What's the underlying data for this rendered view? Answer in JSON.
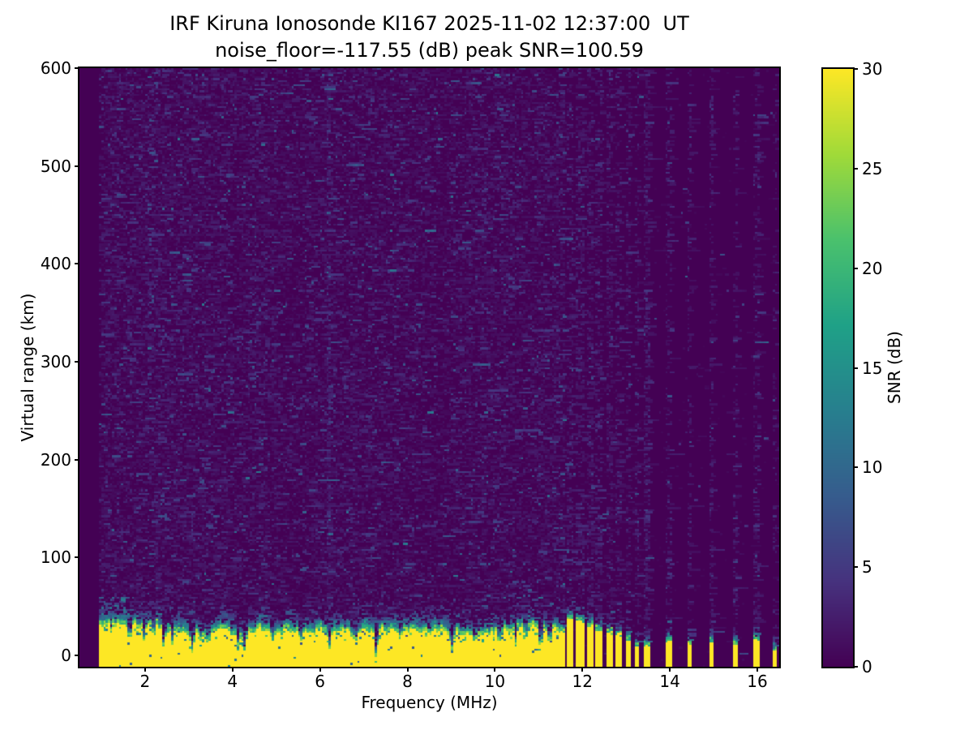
{
  "chart_data": {
    "type": "heatmap",
    "title": "IRF Kiruna Ionosonde KI167 2025-11-02 12:37:00  UT",
    "subtitle": "noise_floor=-117.55 (dB) peak SNR=100.59",
    "station": "IRF Kiruna Ionosonde KI167",
    "timestamp_ut": "2025-11-02 12:37:00",
    "noise_floor_db": -117.55,
    "peak_snr_db": 100.59,
    "xlabel": "Frequency (MHz)",
    "ylabel": "Virtual range (km)",
    "xlim": [
      0.5,
      16.5
    ],
    "ylim": [
      -11.6,
      600
    ],
    "xticks": [
      2,
      4,
      6,
      8,
      10,
      12,
      14,
      16
    ],
    "yticks": [
      0,
      100,
      200,
      300,
      400,
      500,
      600
    ],
    "colorbar": {
      "label": "SNR (dB)",
      "ticks": [
        0,
        5,
        10,
        15,
        20,
        25,
        30
      ],
      "min": 0,
      "max": 30,
      "colormap": "viridis"
    },
    "colors": {
      "background": "#440154",
      "peak": "#fde725"
    },
    "features": {
      "signal_start_mhz": 0.95,
      "solid_ground_band_end_mhz": 11.61,
      "ground_band_top_km": 30,
      "band_notches_mhz": [
        [
          1.65,
          14,
          0.05
        ],
        [
          2.2,
          9,
          0.04
        ],
        [
          2.62,
          13,
          0.04
        ],
        [
          3.08,
          19,
          0.05
        ],
        [
          3.45,
          10,
          0.04
        ],
        [
          4.28,
          19,
          0.05
        ],
        [
          4.9,
          9,
          0.04
        ],
        [
          5.55,
          11,
          0.04
        ],
        [
          6.22,
          19,
          0.05
        ],
        [
          6.8,
          9,
          0.04
        ],
        [
          7.3,
          16,
          0.05
        ],
        [
          7.85,
          9,
          0.04
        ],
        [
          8.5,
          10,
          0.04
        ],
        [
          9.0,
          15,
          0.05
        ],
        [
          9.55,
          9,
          0.04
        ],
        [
          10.1,
          11,
          0.04
        ],
        [
          10.7,
          10,
          0.04
        ],
        [
          11.25,
          12,
          0.04
        ]
      ],
      "stripes": [
        {
          "f": 11.73,
          "w": 0.08,
          "top": 42,
          "dot": 0.45
        },
        {
          "f": 11.95,
          "w": 0.08,
          "top": 38,
          "dot": 0.45
        },
        {
          "f": 12.17,
          "w": 0.075,
          "top": 34,
          "dot": 0.4
        },
        {
          "f": 12.39,
          "w": 0.07,
          "top": 30,
          "dot": 0.4
        },
        {
          "f": 12.61,
          "w": 0.07,
          "top": 27,
          "dot": 0.38
        },
        {
          "f": 12.83,
          "w": 0.065,
          "top": 25,
          "dot": 0.36
        },
        {
          "f": 13.05,
          "w": 0.06,
          "top": 21,
          "dot": 0.34
        },
        {
          "f": 13.27,
          "w": 0.05,
          "top": 13,
          "dot": 0.3
        },
        {
          "f": 13.47,
          "w": 0.06,
          "top": 14,
          "dot": 0.55
        },
        {
          "f": 13.97,
          "w": 0.06,
          "top": 18,
          "dot": 0.32
        },
        {
          "f": 14.46,
          "w": 0.06,
          "top": 15,
          "dot": 0.3
        },
        {
          "f": 14.95,
          "w": 0.06,
          "top": 18,
          "dot": 0.35
        },
        {
          "f": 15.49,
          "w": 0.06,
          "top": 15,
          "dot": 0.3
        },
        {
          "f": 15.97,
          "w": 0.06,
          "top": 20,
          "dot": 0.35
        },
        {
          "f": 16.38,
          "w": 0.05,
          "top": 8,
          "dot": 0.2
        }
      ],
      "rfi_columns": [
        {
          "f": 6.21,
          "w": 0.04,
          "dot": 0.4,
          "hot_km": 390
        }
      ]
    }
  }
}
